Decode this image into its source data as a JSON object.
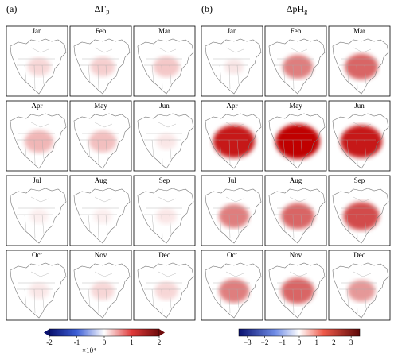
{
  "panels": [
    {
      "label": "(a)",
      "title": "ΔΓ",
      "title_subscript": "p",
      "months": [
        "Jan",
        "Feb",
        "Mar",
        "Apr",
        "May",
        "Jun",
        "Jul",
        "Aug",
        "Sep",
        "Oct",
        "Nov",
        "Dec"
      ],
      "colorbar": {
        "lim": [
          -2,
          2
        ],
        "ticks": [
          -2,
          -1,
          0,
          1,
          2
        ],
        "multiplier": "×10⁴"
      }
    },
    {
      "label": "(b)",
      "title": "ΔpH",
      "title_subscript": "g",
      "months": [
        "Jan",
        "Feb",
        "Mar",
        "Apr",
        "May",
        "Jun",
        "Jul",
        "Aug",
        "Sep",
        "Oct",
        "Nov",
        "Dec"
      ],
      "colorbar": {
        "lim": [
          -3.5,
          3.5
        ],
        "ticks": [
          {
            "value": -3,
            "label": "−3"
          },
          {
            "value": -2,
            "label": "−2"
          },
          {
            "value": -1,
            "label": "−1"
          },
          0,
          1,
          2,
          3
        ]
      }
    }
  ]
}
